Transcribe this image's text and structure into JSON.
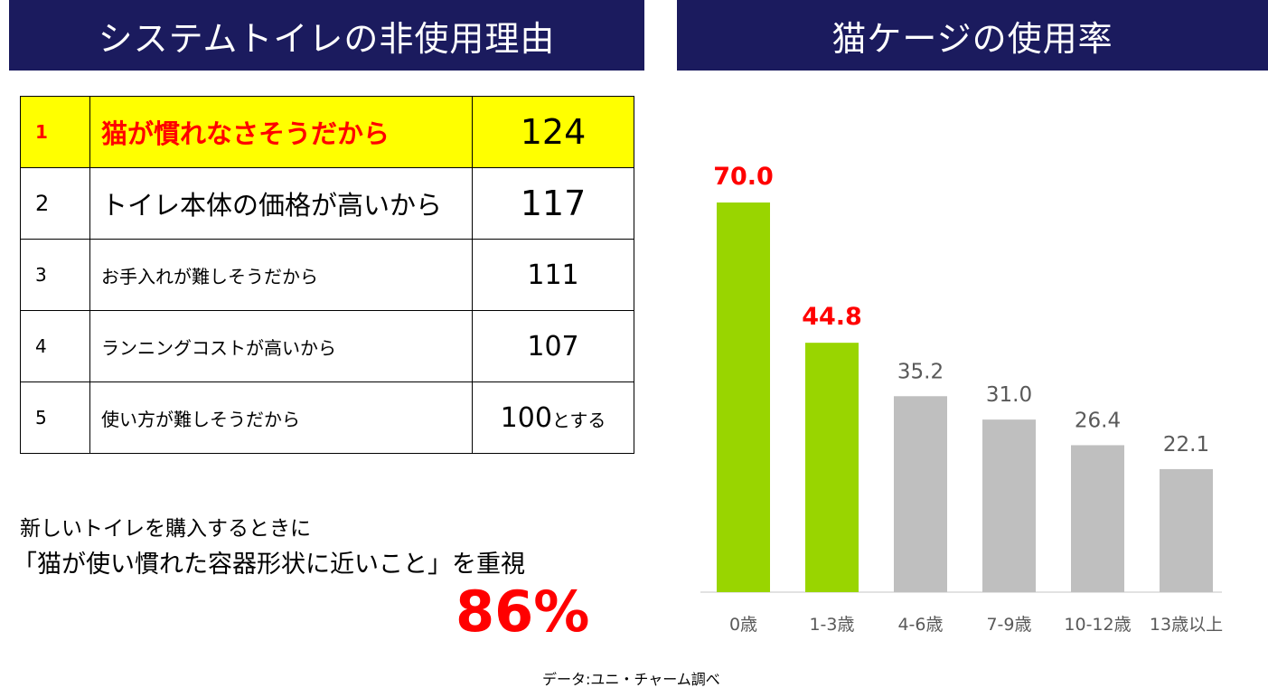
{
  "left_panel": {
    "title": "システムトイレの非使用理由",
    "rows": [
      {
        "rank": "1",
        "reason": "猫が慣れなさそうだから",
        "value": "124",
        "suffix": ""
      },
      {
        "rank": "2",
        "reason": "トイレ本体の価格が高いから",
        "value": "117",
        "suffix": ""
      },
      {
        "rank": "3",
        "reason": "お手入れが難しそうだから",
        "value": "111",
        "suffix": ""
      },
      {
        "rank": "4",
        "reason": "ランニングコストが高いから",
        "value": "107",
        "suffix": ""
      },
      {
        "rank": "5",
        "reason": "使い方が難しそうだから",
        "value": "100",
        "suffix": "とする"
      }
    ],
    "note_line1": "新しいトイレを購入するときに",
    "note_line2": "「猫が使い慣れた容器形状に近いこと」を重視",
    "note_percent": "86%"
  },
  "right_panel": {
    "title": "猫ケージの使用率"
  },
  "source": "データ:ユニ・チャーム調べ",
  "colors": {
    "banner": "#1b1b5e",
    "highlight_bar": "#99d500",
    "normal_bar": "#bfbfbf",
    "highlight_label": "#ff0000",
    "normal_label": "#595959",
    "table_highlight": "#ffff00"
  },
  "chart_data": {
    "type": "bar",
    "categories": [
      "0歳",
      "1-3歳",
      "4-6歳",
      "7-9歳",
      "10-12歳",
      "13歳以上"
    ],
    "values": [
      70.0,
      44.8,
      35.2,
      31.0,
      26.4,
      22.1
    ],
    "value_labels": [
      "70.0",
      "44.8",
      "35.2",
      "31.0",
      "26.4",
      "22.1"
    ],
    "highlighted": [
      true,
      true,
      false,
      false,
      false,
      false
    ],
    "ylim": [
      0,
      80
    ],
    "grid": false,
    "legend": "none"
  }
}
